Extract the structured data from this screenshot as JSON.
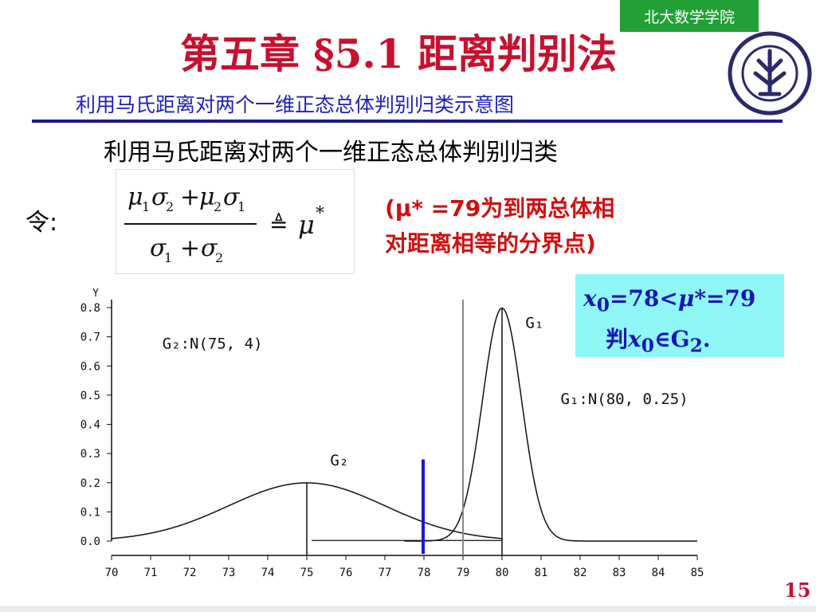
{
  "header": {
    "badge": "北大数学学院",
    "title": "第五章 §5.1 距离判别法",
    "subtitle": "利用马氏距离对两个一维正态总体判别归类示意图"
  },
  "slide": {
    "heading": "利用马氏距离对两个一维正态总体判别归类",
    "ling": "令:",
    "note_line1": "(μ* =79为到两总体相",
    "note_line2": "对距离相等的分界点)",
    "page_number": "15",
    "logo_icon": "peking-university-seal-icon"
  },
  "callout": {
    "x": "x",
    "sub0": "0",
    "eq": "=78<",
    "mu": "μ",
    "rest": "*=79",
    "pan": "判",
    "x2": "x",
    "sub0b": "0",
    "in": "∈G",
    "sub2": "2",
    "dot": "."
  },
  "colors": {
    "title": "#c8102e",
    "subtitle": "#1f1fbf",
    "badge": "#22a035",
    "callout_bg": "#90f7f7",
    "marker": "#1a1ad0"
  },
  "chart_data": {
    "type": "line",
    "ylabel": "Y",
    "xlim": [
      70,
      85
    ],
    "ylim": [
      0,
      0.8
    ],
    "x_ticks": [
      "70",
      "71",
      "72",
      "73",
      "74",
      "75",
      "76",
      "77",
      "78",
      "79",
      "80",
      "81",
      "82",
      "83",
      "84",
      "85"
    ],
    "y_ticks": [
      "0.0",
      "0.1",
      "0.2",
      "0.3",
      "0.4",
      "0.5",
      "0.6",
      "0.7",
      "0.8"
    ],
    "series": [
      {
        "name": "G₂",
        "mean": 75,
        "variance": 4,
        "x": [
          70,
          71,
          72,
          73,
          74,
          75,
          76,
          77,
          78,
          79,
          80
        ],
        "y": [
          0.009,
          0.027,
          0.065,
          0.121,
          0.176,
          0.199,
          0.176,
          0.121,
          0.065,
          0.027,
          0.009
        ]
      },
      {
        "name": "G₁",
        "mean": 80,
        "variance": 0.25,
        "x": [
          77.5,
          78,
          78.5,
          79,
          79.5,
          80,
          80.5,
          81,
          81.5,
          82,
          82.5
        ],
        "y": [
          0.0,
          0.0003,
          0.009,
          0.108,
          0.484,
          0.798,
          0.484,
          0.108,
          0.009,
          0.0003,
          0.0
        ]
      }
    ],
    "annotations": {
      "g2_dist": "G₂:N(75, 4)",
      "g1_dist": "G₁:N(80, 0.25)",
      "g2_label": "G₂",
      "g1_label": "G₁"
    },
    "boundary_x": 79,
    "x0": 78
  }
}
